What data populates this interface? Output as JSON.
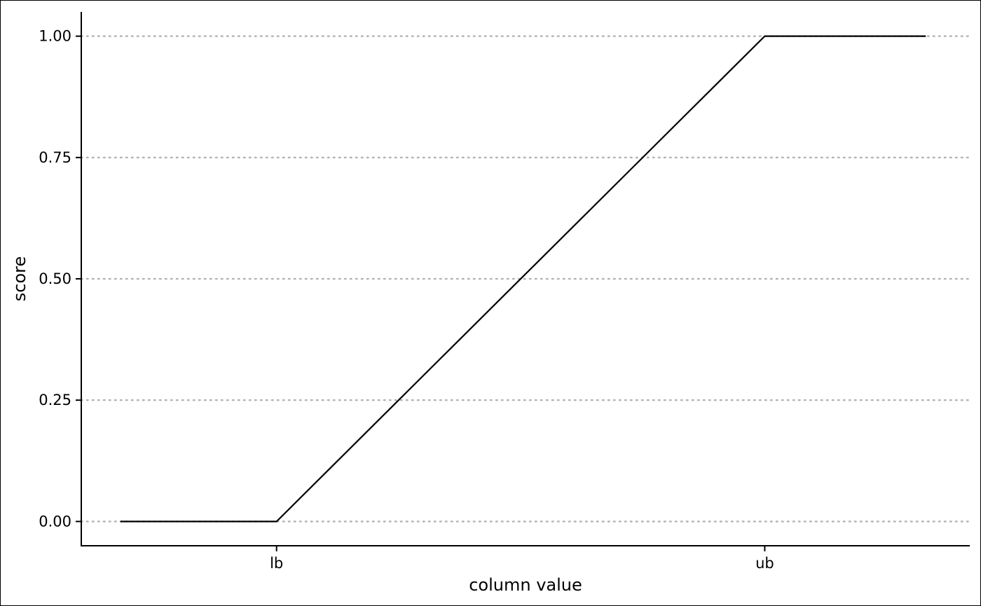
{
  "chart_data": {
    "type": "line",
    "title": "",
    "xlabel": "column value",
    "ylabel": "score",
    "x_ticks": [
      {
        "label": "lb",
        "value": 1
      },
      {
        "label": "ub",
        "value": 2
      }
    ],
    "y_ticks": [
      "0.00",
      "0.25",
      "0.50",
      "0.75",
      "1.00"
    ],
    "y_tick_values": [
      0,
      0.25,
      0.5,
      0.75,
      1
    ],
    "xlim": [
      0.6,
      2.42
    ],
    "ylim": [
      -0.05,
      1.05
    ],
    "grid": "horizontal dotted",
    "series": [
      {
        "x": [
          0.68,
          1,
          2,
          2.33
        ],
        "y": [
          0,
          0,
          1,
          1
        ],
        "color": "#000000"
      }
    ]
  }
}
